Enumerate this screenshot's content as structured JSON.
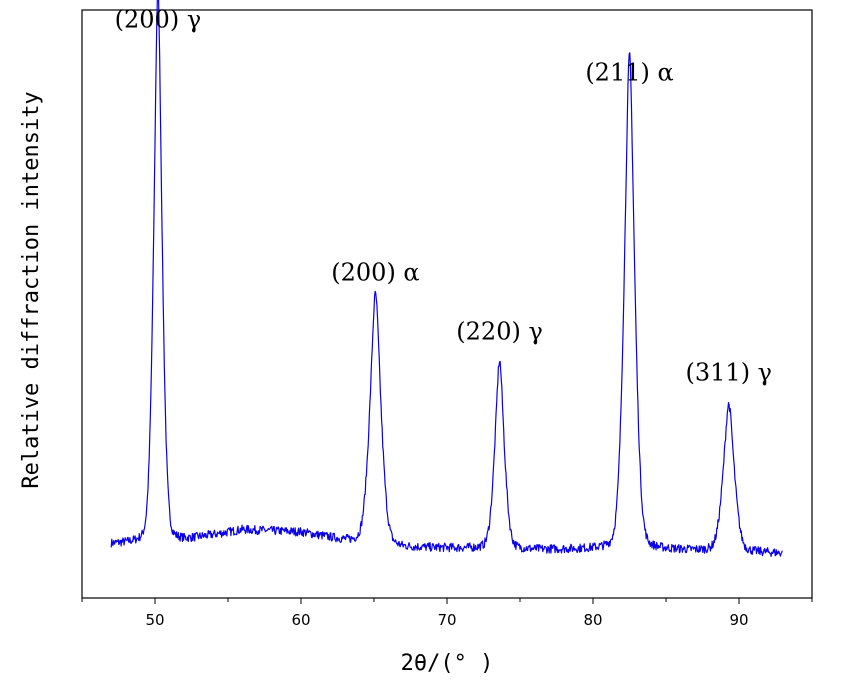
{
  "chart_data": {
    "type": "line",
    "title": "",
    "xlabel": "2θ/(° )",
    "ylabel": "Relative diffraction intensity",
    "xlim": [
      45,
      95
    ],
    "ylim": [
      0,
      100
    ],
    "x_ticks": [
      50,
      60,
      70,
      80,
      90
    ],
    "x_tick_labels": [
      "50",
      "60",
      "70",
      "80",
      "90"
    ],
    "x_minor_step": 5,
    "y_ticks_shown": false,
    "grid": false,
    "legend": "none",
    "series": [
      {
        "color": "#0a00e6",
        "x_range": [
          47,
          93
        ],
        "baseline": [
          {
            "x": 47,
            "y": 9.2
          },
          {
            "x": 49,
            "y": 9.4
          },
          {
            "x": 52,
            "y": 9.8
          },
          {
            "x": 56,
            "y": 11.6
          },
          {
            "x": 60,
            "y": 11.2
          },
          {
            "x": 63,
            "y": 9.8
          },
          {
            "x": 67,
            "y": 8.6
          },
          {
            "x": 72,
            "y": 8.4
          },
          {
            "x": 76,
            "y": 8.2
          },
          {
            "x": 80,
            "y": 8.3
          },
          {
            "x": 85,
            "y": 8.2
          },
          {
            "x": 88,
            "y": 8.0
          },
          {
            "x": 91,
            "y": 7.8
          },
          {
            "x": 93,
            "y": 7.6
          }
        ],
        "peaks": [
          {
            "x": 50.2,
            "height": 94,
            "width": 0.32
          },
          {
            "x": 65.1,
            "height": 42.5,
            "width": 0.42
          },
          {
            "x": 73.6,
            "height": 32,
            "width": 0.36
          },
          {
            "x": 82.5,
            "height": 84,
            "width": 0.4
          },
          {
            "x": 89.3,
            "height": 25,
            "width": 0.42
          }
        ]
      }
    ],
    "annotations": [
      {
        "text": "(200) γ",
        "x": 50.2,
        "y": 97
      },
      {
        "text": "(200) α",
        "x": 65.1,
        "y": 54
      },
      {
        "text": "(220) γ",
        "x": 73.6,
        "y": 44
      },
      {
        "text": "(211) α",
        "x": 82.5,
        "y": 88
      },
      {
        "text": "(311) γ",
        "x": 89.3,
        "y": 37
      }
    ]
  }
}
